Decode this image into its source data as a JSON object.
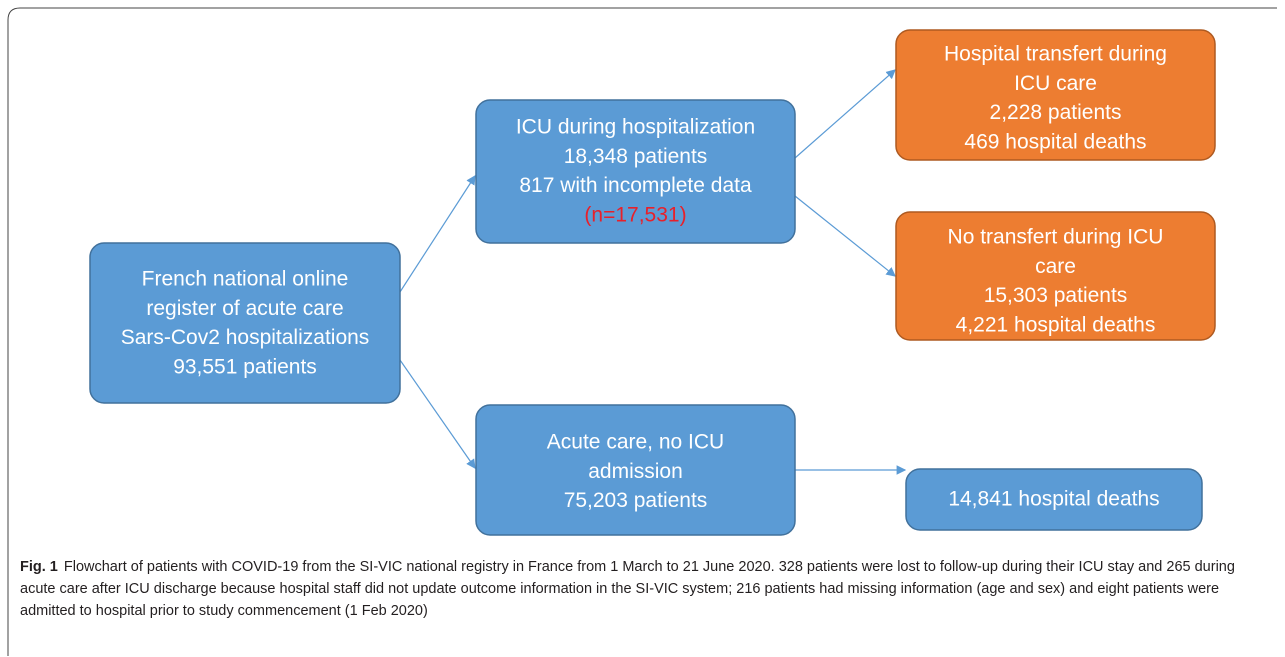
{
  "nodes": [
    {
      "lines": [
        "French national online",
        "register of acute care",
        "Sars-Cov2 hospitalizations",
        "93,551 patients"
      ]
    },
    {
      "lines": [
        "ICU during hospitalization",
        "18,348 patients",
        "817 with incomplete data",
        "(n=17,531)"
      ]
    },
    {
      "lines": [
        "Acute care, no ICU",
        "admission",
        "75,203 patients"
      ]
    },
    {
      "lines": [
        "Hospital transfert during",
        "ICU care",
        "2,228 patients",
        "469 hospital deaths"
      ]
    },
    {
      "lines": [
        "No transfert during ICU",
        "care",
        "15,303 patients",
        "4,221 hospital deaths"
      ]
    },
    {
      "lines": [
        "14,841 hospital deaths"
      ]
    }
  ],
  "caption": {
    "label": "Fig. 1",
    "text": "Flowchart of patients with COVID-19 from the SI-VIC national registry in France from 1 March to 21 June 2020. 328 patients were lost to follow-up during their ICU stay and 265 during acute care after ICU discharge because hospital staff did not update outcome information in the SI-VIC system; 216 patients had missing information (age and sex) and eight patients were admitted to hospital prior to study commencement (1 Feb 2020)"
  }
}
